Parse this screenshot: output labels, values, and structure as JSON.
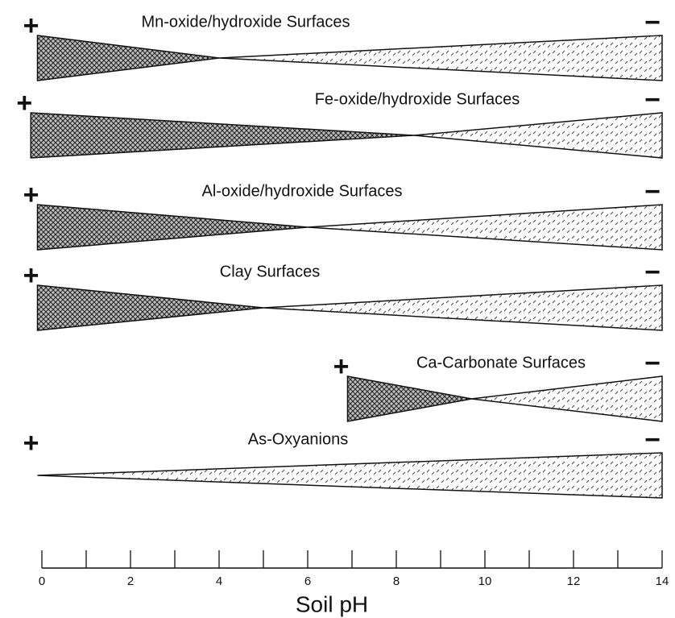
{
  "diagram": {
    "rows": [
      {
        "label": "Mn-oxide/hydroxide Surfaces",
        "plus": "+",
        "minus": "−",
        "start": -0.1,
        "pzc": 4,
        "end": 14
      },
      {
        "label": "Fe-oxide/hydroxide Surfaces",
        "plus": "+",
        "minus": "−",
        "start": -0.25,
        "pzc": 8.4,
        "end": 14
      },
      {
        "label": "Al-oxide/hydroxide Surfaces",
        "plus": "+",
        "minus": "−",
        "start": -0.1,
        "pzc": 6,
        "end": 14
      },
      {
        "label": "Clay Surfaces",
        "plus": "+",
        "minus": "−",
        "start": -0.1,
        "pzc": 5,
        "end": 14
      },
      {
        "label": "Ca-Carbonate Surfaces",
        "plus": "+",
        "minus": "−",
        "start": 6.9,
        "pzc": 9.7,
        "end": 14
      },
      {
        "label": "As-Oxyanions",
        "plus": "+",
        "minus": "−",
        "start": -0.1,
        "pzc": -0.1,
        "end": 14
      }
    ],
    "xlabel": "Soil pH",
    "xlim": [
      0,
      14
    ],
    "xticks": [
      0,
      2,
      4,
      6,
      8,
      10,
      12,
      14
    ],
    "minor_xticks": [
      1,
      3,
      5,
      7,
      9,
      11,
      13
    ]
  }
}
